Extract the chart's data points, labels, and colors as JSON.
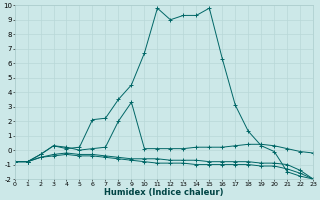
{
  "xlabel": "Humidex (Indice chaleur)",
  "bg_color": "#cce8e8",
  "grid_color": "#b8d8d8",
  "line_color": "#006666",
  "xlim": [
    0,
    23
  ],
  "ylim": [
    -2,
    10
  ],
  "xtick_vals": [
    0,
    1,
    2,
    3,
    4,
    5,
    6,
    7,
    8,
    9,
    10,
    11,
    12,
    13,
    14,
    15,
    16,
    17,
    18,
    19,
    20,
    21,
    22,
    23
  ],
  "ytick_vals": [
    -2,
    -1,
    0,
    1,
    2,
    3,
    4,
    5,
    6,
    7,
    8,
    9,
    10
  ],
  "series": [
    {
      "x": [
        0,
        1,
        2,
        3,
        4,
        5,
        6,
        7,
        8,
        9,
        10,
        11,
        12,
        13,
        14,
        15,
        16,
        17,
        18,
        19,
        20,
        21,
        22,
        23
      ],
      "y": [
        -0.8,
        -0.8,
        -0.3,
        0.3,
        0.1,
        0.2,
        2.1,
        2.2,
        3.5,
        4.5,
        6.7,
        9.8,
        9.0,
        9.3,
        9.3,
        9.8,
        6.3,
        3.1,
        1.3,
        0.3,
        -0.1,
        -1.5,
        -1.8,
        -2.0
      ]
    },
    {
      "x": [
        0,
        1,
        2,
        3,
        4,
        5,
        6,
        7,
        8,
        9,
        10,
        11,
        12,
        13,
        14,
        15,
        16,
        17,
        18,
        19,
        20,
        21,
        22,
        23
      ],
      "y": [
        -0.8,
        -0.8,
        -0.3,
        0.3,
        0.2,
        0.0,
        0.1,
        0.2,
        2.0,
        3.3,
        0.1,
        0.1,
        0.1,
        0.1,
        0.2,
        0.2,
        0.2,
        0.3,
        0.4,
        0.4,
        0.3,
        0.1,
        -0.1,
        -0.2
      ]
    },
    {
      "x": [
        0,
        1,
        2,
        3,
        4,
        5,
        6,
        7,
        8,
        9,
        10,
        11,
        12,
        13,
        14,
        15,
        16,
        17,
        18,
        19,
        20,
        21,
        22,
        23
      ],
      "y": [
        -0.8,
        -0.8,
        -0.5,
        -0.4,
        -0.3,
        -0.4,
        -0.4,
        -0.5,
        -0.6,
        -0.7,
        -0.8,
        -0.9,
        -0.9,
        -0.9,
        -1.0,
        -1.0,
        -1.0,
        -1.0,
        -1.0,
        -1.1,
        -1.1,
        -1.3,
        -1.6,
        -2.0
      ]
    },
    {
      "x": [
        0,
        1,
        2,
        3,
        4,
        5,
        6,
        7,
        8,
        9,
        10,
        11,
        12,
        13,
        14,
        15,
        16,
        17,
        18,
        19,
        20,
        21,
        22,
        23
      ],
      "y": [
        -0.8,
        -0.8,
        -0.5,
        -0.3,
        -0.2,
        -0.3,
        -0.3,
        -0.4,
        -0.5,
        -0.6,
        -0.6,
        -0.6,
        -0.7,
        -0.7,
        -0.7,
        -0.8,
        -0.8,
        -0.8,
        -0.8,
        -0.9,
        -0.9,
        -1.0,
        -1.4,
        -2.0
      ]
    }
  ]
}
